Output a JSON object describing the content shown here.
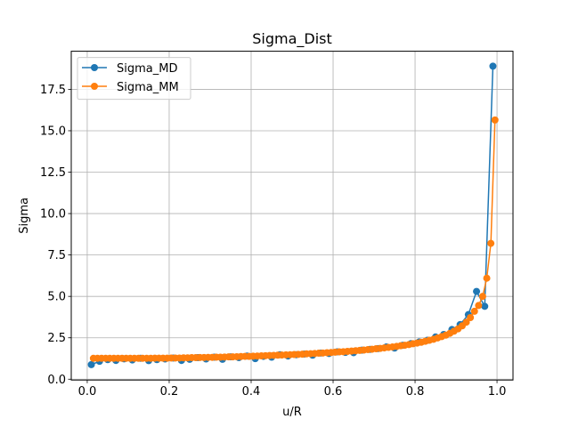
{
  "chart_data": {
    "type": "line",
    "title": "Sigma_Dist",
    "xlabel": "u/R",
    "ylabel": "Sigma",
    "xlim": [
      -0.039,
      1.039
    ],
    "ylim": [
      -0.05,
      19.8
    ],
    "xticks": [
      0.0,
      0.2,
      0.4,
      0.6,
      0.8,
      1.0
    ],
    "xtick_labels": [
      "0.0",
      "0.2",
      "0.4",
      "0.6",
      "0.8",
      "1.0"
    ],
    "yticks": [
      0.0,
      2.5,
      5.0,
      7.5,
      10.0,
      12.5,
      15.0,
      17.5
    ],
    "ytick_labels": [
      "0.0",
      "2.5",
      "5.0",
      "7.5",
      "10.0",
      "12.5",
      "15.0",
      "17.5"
    ],
    "grid": true,
    "legend_position": "upper-left",
    "series": [
      {
        "name": "Sigma_MD",
        "color": "#1f77b4",
        "marker": "circle",
        "x": [
          0.01,
          0.03,
          0.05,
          0.07,
          0.09,
          0.11,
          0.13,
          0.15,
          0.17,
          0.19,
          0.21,
          0.23,
          0.25,
          0.27,
          0.29,
          0.31,
          0.33,
          0.35,
          0.37,
          0.39,
          0.41,
          0.43,
          0.45,
          0.47,
          0.49,
          0.51,
          0.53,
          0.55,
          0.57,
          0.59,
          0.61,
          0.63,
          0.65,
          0.67,
          0.69,
          0.71,
          0.73,
          0.75,
          0.77,
          0.79,
          0.81,
          0.83,
          0.85,
          0.87,
          0.89,
          0.91,
          0.93,
          0.95,
          0.97,
          0.99
        ],
        "y": [
          0.88,
          1.08,
          1.18,
          1.13,
          1.23,
          1.16,
          1.26,
          1.12,
          1.18,
          1.22,
          1.28,
          1.13,
          1.2,
          1.3,
          1.22,
          1.33,
          1.2,
          1.35,
          1.3,
          1.4,
          1.24,
          1.38,
          1.33,
          1.48,
          1.4,
          1.48,
          1.52,
          1.45,
          1.58,
          1.55,
          1.65,
          1.62,
          1.6,
          1.75,
          1.8,
          1.85,
          1.95,
          1.88,
          2.05,
          2.15,
          2.25,
          2.35,
          2.55,
          2.7,
          3.0,
          3.3,
          3.9,
          5.3,
          4.4,
          18.9
        ]
      },
      {
        "name": "Sigma_MM",
        "color": "#ff7f0e",
        "marker": "circle",
        "x": [
          0.015,
          0.025,
          0.035,
          0.045,
          0.055,
          0.065,
          0.075,
          0.085,
          0.095,
          0.105,
          0.115,
          0.125,
          0.135,
          0.145,
          0.155,
          0.165,
          0.175,
          0.185,
          0.195,
          0.205,
          0.215,
          0.225,
          0.235,
          0.245,
          0.255,
          0.265,
          0.275,
          0.285,
          0.295,
          0.305,
          0.315,
          0.325,
          0.335,
          0.345,
          0.355,
          0.365,
          0.375,
          0.385,
          0.395,
          0.405,
          0.415,
          0.425,
          0.435,
          0.445,
          0.455,
          0.465,
          0.475,
          0.485,
          0.495,
          0.505,
          0.515,
          0.525,
          0.535,
          0.545,
          0.555,
          0.565,
          0.575,
          0.585,
          0.595,
          0.605,
          0.615,
          0.625,
          0.635,
          0.645,
          0.655,
          0.665,
          0.675,
          0.685,
          0.695,
          0.705,
          0.715,
          0.725,
          0.735,
          0.745,
          0.755,
          0.765,
          0.775,
          0.785,
          0.795,
          0.805,
          0.815,
          0.825,
          0.835,
          0.845,
          0.855,
          0.865,
          0.875,
          0.885,
          0.895,
          0.905,
          0.915,
          0.925,
          0.935,
          0.945,
          0.955,
          0.965,
          0.975,
          0.985,
          0.995
        ],
        "y": [
          1.26,
          1.26,
          1.26,
          1.26,
          1.26,
          1.26,
          1.26,
          1.26,
          1.26,
          1.26,
          1.26,
          1.26,
          1.26,
          1.26,
          1.26,
          1.27,
          1.27,
          1.27,
          1.27,
          1.28,
          1.28,
          1.28,
          1.29,
          1.29,
          1.3,
          1.3,
          1.31,
          1.31,
          1.32,
          1.32,
          1.33,
          1.33,
          1.34,
          1.35,
          1.35,
          1.36,
          1.37,
          1.38,
          1.38,
          1.39,
          1.4,
          1.41,
          1.42,
          1.43,
          1.44,
          1.45,
          1.46,
          1.47,
          1.48,
          1.49,
          1.5,
          1.51,
          1.53,
          1.54,
          1.55,
          1.57,
          1.58,
          1.6,
          1.61,
          1.63,
          1.65,
          1.66,
          1.68,
          1.7,
          1.72,
          1.74,
          1.76,
          1.79,
          1.81,
          1.84,
          1.86,
          1.89,
          1.92,
          1.95,
          1.98,
          2.02,
          2.05,
          2.09,
          2.14,
          2.18,
          2.23,
          2.29,
          2.35,
          2.41,
          2.49,
          2.57,
          2.66,
          2.77,
          2.9,
          3.04,
          3.22,
          3.44,
          3.72,
          4.1,
          4.45,
          5.0,
          6.1,
          8.2,
          15.65
        ]
      }
    ]
  }
}
